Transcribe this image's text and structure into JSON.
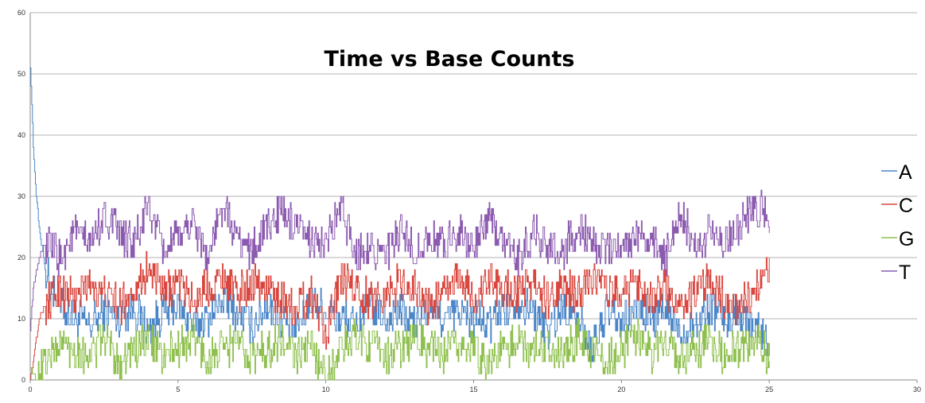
{
  "chart_data": {
    "type": "line",
    "title": "Time vs Base Counts",
    "xlabel": "",
    "ylabel": "",
    "xlim": [
      0,
      30
    ],
    "ylim": [
      0,
      60
    ],
    "x_ticks": [
      "0",
      "5",
      "10",
      "15",
      "20",
      "25",
      "30"
    ],
    "y_ticks": [
      "0",
      "10",
      "20",
      "30",
      "40",
      "50",
      "60"
    ],
    "grid": "horizontal",
    "legend_position": "right",
    "x_end": 25,
    "series": [
      {
        "name": "A",
        "color": "#4a86c8",
        "x": [
          0,
          0.05,
          0.1,
          0.2,
          0.3,
          0.5,
          0.8,
          1,
          1.5,
          2,
          2.5,
          3,
          3.5,
          4,
          4.5,
          5,
          5.5,
          6,
          6.5,
          7,
          7.5,
          8,
          8.5,
          9,
          9.5,
          10,
          10.5,
          11,
          11.5,
          12,
          12.5,
          13,
          13.5,
          14,
          14.5,
          15,
          15.5,
          16,
          16.5,
          17,
          17.5,
          18,
          18.5,
          19,
          19.5,
          20,
          20.5,
          21,
          21.5,
          22,
          22.5,
          23,
          23.5,
          24,
          24.5,
          25
        ],
        "values": [
          51,
          45,
          38,
          30,
          25,
          18,
          14,
          12,
          10,
          9,
          11,
          10,
          12,
          8,
          11,
          12,
          9,
          10,
          13,
          11,
          9,
          12,
          10,
          8,
          13,
          11,
          10,
          9,
          12,
          10,
          11,
          9,
          12,
          10,
          11,
          10,
          9,
          12,
          13,
          11,
          8,
          12,
          10,
          5,
          11,
          9,
          12,
          10,
          11,
          8,
          9,
          12,
          10,
          11,
          9,
          6
        ]
      },
      {
        "name": "C",
        "color": "#d9463e",
        "x": [
          0,
          0.1,
          0.3,
          0.5,
          1,
          1.5,
          2,
          2.5,
          3,
          3.5,
          4,
          4.5,
          5,
          5.5,
          6,
          6.5,
          7,
          7.5,
          8,
          8.5,
          9,
          9.5,
          10,
          10.5,
          11,
          11.5,
          12,
          12.5,
          13,
          13.5,
          14,
          14.5,
          15,
          15.5,
          16,
          16.5,
          17,
          17.5,
          18,
          18.5,
          19,
          19.5,
          20,
          20.5,
          21,
          21.5,
          22,
          22.5,
          23,
          23.5,
          24,
          24.5,
          25
        ],
        "values": [
          0,
          3,
          10,
          12,
          15,
          13,
          16,
          14,
          12,
          15,
          18,
          14,
          16,
          13,
          15,
          17,
          14,
          16,
          15,
          13,
          12,
          14,
          8,
          16,
          15,
          13,
          14,
          16,
          15,
          12,
          14,
          17,
          13,
          16,
          15,
          14,
          16,
          13,
          15,
          14,
          17,
          15,
          13,
          16,
          14,
          15,
          12,
          14,
          16,
          13,
          12,
          14,
          19
        ]
      },
      {
        "name": "G",
        "color": "#8fc04f",
        "x": [
          0,
          0.2,
          0.5,
          1,
          1.5,
          2,
          2.5,
          3,
          3.5,
          4,
          4.5,
          5,
          5.5,
          6,
          6.5,
          7,
          7.5,
          8,
          8.5,
          9,
          9.5,
          10,
          10.5,
          11,
          11.5,
          12,
          12.5,
          13,
          13.5,
          14,
          14.5,
          15,
          15.5,
          16,
          16.5,
          17,
          17.5,
          18,
          18.5,
          19,
          19.5,
          20,
          20.5,
          21,
          21.5,
          22,
          22.5,
          23,
          23.5,
          24,
          24.5,
          25
        ],
        "values": [
          2,
          0,
          3,
          6,
          5,
          4,
          7,
          3,
          5,
          6,
          4,
          5,
          7,
          3,
          5,
          6,
          4,
          5,
          6,
          4,
          5,
          1,
          5,
          7,
          6,
          4,
          5,
          7,
          5,
          4,
          6,
          5,
          3,
          5,
          6,
          5,
          6,
          4,
          7,
          5,
          3,
          5,
          7,
          4,
          6,
          4,
          5,
          6,
          4,
          5,
          6,
          4
        ]
      },
      {
        "name": "T",
        "color": "#8c5bb0",
        "x": [
          0,
          0.1,
          0.3,
          0.5,
          1,
          1.5,
          2,
          2.5,
          3,
          3.5,
          4,
          4.5,
          5,
          5.5,
          6,
          6.5,
          7,
          7.5,
          8,
          8.5,
          9,
          9.5,
          10,
          10.5,
          11,
          11.5,
          12,
          12.5,
          13,
          13.5,
          14,
          14.5,
          15,
          15.5,
          16,
          16.5,
          17,
          17.5,
          18,
          18.5,
          19,
          19.5,
          20,
          20.5,
          21,
          21.5,
          22,
          22.5,
          23,
          23.5,
          24,
          24.5,
          25
        ],
        "values": [
          8,
          15,
          20,
          22,
          20,
          24,
          22,
          27,
          24,
          22,
          28,
          21,
          23,
          26,
          20,
          28,
          23,
          21,
          25,
          28,
          24,
          23,
          22,
          28,
          21,
          22,
          20,
          24,
          21,
          23,
          22,
          25,
          21,
          27,
          22,
          20,
          24,
          22,
          21,
          25,
          23,
          21,
          22,
          24,
          23,
          20,
          28,
          21,
          24,
          23,
          25,
          29,
          26
        ]
      }
    ]
  }
}
